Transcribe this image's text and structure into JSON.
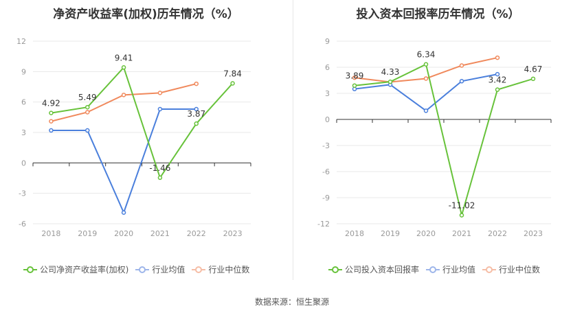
{
  "chart_data": [
    {
      "type": "line",
      "title": "净资产收益率(加权)历年情况（%）",
      "categories": [
        "2018",
        "2019",
        "2020",
        "2021",
        "2022",
        "2023"
      ],
      "ylim": [
        -6,
        12
      ],
      "yticks": [
        12,
        9,
        6,
        3,
        0,
        -3,
        -6
      ],
      "series": [
        {
          "name": "公司净资产收益率(加权)",
          "color": "#67c23a",
          "values": [
            4.92,
            5.49,
            9.41,
            -1.46,
            3.87,
            7.84
          ]
        },
        {
          "name": "行业均值",
          "color": "#4a7fdc",
          "values": [
            3.2,
            3.2,
            -4.9,
            5.3,
            5.3,
            null
          ]
        },
        {
          "name": "行业中位数",
          "color": "#f0895c",
          "values": [
            4.1,
            5.0,
            6.7,
            6.9,
            7.8,
            null
          ]
        }
      ],
      "data_labels": [
        "4.92",
        "5.49",
        "9.41",
        "-1.46",
        "3.87",
        "7.84"
      ]
    },
    {
      "type": "line",
      "title": "投入资本回报率历年情况（%）",
      "categories": [
        "2018",
        "2019",
        "2020",
        "2021",
        "2022",
        "2023"
      ],
      "ylim": [
        -12,
        9
      ],
      "yticks": [
        9,
        6,
        3,
        0,
        -3,
        -6,
        -9,
        -12
      ],
      "series": [
        {
          "name": "公司投入资本回报率",
          "color": "#67c23a",
          "values": [
            3.89,
            4.33,
            6.34,
            -11.02,
            3.42,
            4.67
          ]
        },
        {
          "name": "行业均值",
          "color": "#4a7fdc",
          "values": [
            3.5,
            4.0,
            1.0,
            4.4,
            5.2,
            null
          ]
        },
        {
          "name": "行业中位数",
          "color": "#f0895c",
          "values": [
            4.8,
            4.3,
            4.7,
            6.2,
            7.1,
            null
          ]
        }
      ],
      "data_labels": [
        "3.89",
        "4.33",
        "6.34",
        "-11.02",
        "3.42",
        "4.67"
      ]
    }
  ],
  "source": "数据来源：恒生聚源"
}
